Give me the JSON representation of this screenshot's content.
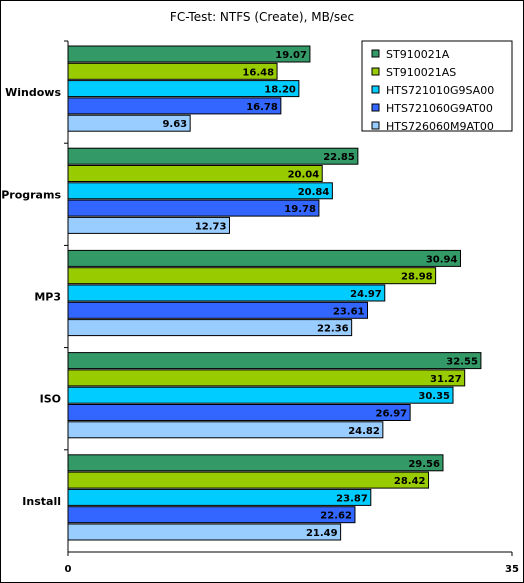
{
  "chart_data": {
    "type": "bar",
    "orientation": "horizontal",
    "title": "FC-Test: NTFS (Create), MB/sec",
    "categories": [
      "Windows",
      "Programs",
      "MP3",
      "ISO",
      "Install"
    ],
    "series": [
      {
        "name": "ST910021A",
        "color": "#339966",
        "values": [
          19.07,
          22.85,
          30.94,
          32.55,
          29.56
        ]
      },
      {
        "name": "ST910021AS",
        "color": "#99cc00",
        "values": [
          16.48,
          20.04,
          28.98,
          31.27,
          28.42
        ]
      },
      {
        "name": "HTS721010G9SA00",
        "color": "#00ccff",
        "values": [
          18.2,
          20.84,
          24.97,
          30.35,
          23.87
        ]
      },
      {
        "name": "HTS721060G9AT00",
        "color": "#3366ff",
        "values": [
          16.78,
          19.78,
          23.61,
          26.97,
          22.62
        ]
      },
      {
        "name": "HTS726060M9AT00",
        "color": "#99ccff",
        "values": [
          9.63,
          12.73,
          22.36,
          24.82,
          21.49
        ]
      }
    ],
    "xlim": [
      0,
      35
    ],
    "xticks": [
      "0",
      "35"
    ],
    "grid": false,
    "legend_position": "top-right"
  }
}
